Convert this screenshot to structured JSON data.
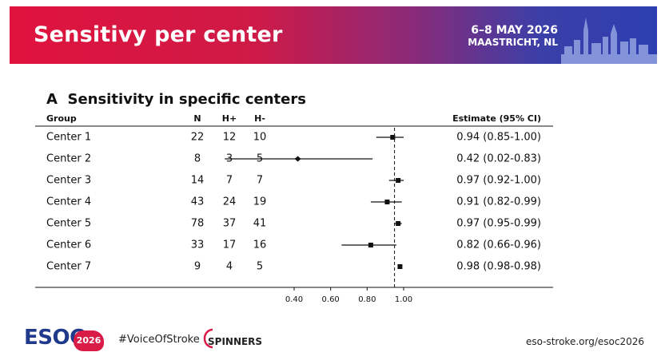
{
  "header": {
    "title": "Sensitivy per center",
    "event_date": "6–8 MAY 2026",
    "event_place": "MAASTRICHT, NL"
  },
  "panel": {
    "letter": "A",
    "title": "Sensitivity in specific centers"
  },
  "table": {
    "headers": {
      "group": "Group",
      "n": "N",
      "hpos": "H+",
      "hneg": "H-",
      "estimate": "Estimate (95% CI)"
    },
    "rows": [
      {
        "group": "Center 1",
        "n": "22",
        "hpos": "12",
        "hneg": "10",
        "estimate": "0.94 (0.85-1.00)"
      },
      {
        "group": "Center 2",
        "n": "8",
        "hpos": "3",
        "hneg": "5",
        "estimate": "0.42 (0.02-0.83)"
      },
      {
        "group": "Center 3",
        "n": "14",
        "hpos": "7",
        "hneg": "7",
        "estimate": "0.97 (0.92-1.00)"
      },
      {
        "group": "Center 4",
        "n": "43",
        "hpos": "24",
        "hneg": "19",
        "estimate": "0.91 (0.82-0.99)"
      },
      {
        "group": "Center 5",
        "n": "78",
        "hpos": "37",
        "hneg": "41",
        "estimate": "0.97 (0.95-0.99)"
      },
      {
        "group": "Center 6",
        "n": "33",
        "hpos": "17",
        "hneg": "16",
        "estimate": "0.82 (0.66-0.96)"
      },
      {
        "group": "Center 7",
        "n": "9",
        "hpos": "4",
        "hneg": "5",
        "estimate": "0.98 (0.98-0.98)"
      }
    ]
  },
  "chart_data": {
    "type": "forest",
    "title": "Sensitivity in specific centers",
    "categories": [
      "Center 1",
      "Center 2",
      "Center 3",
      "Center 4",
      "Center 5",
      "Center 6",
      "Center 7"
    ],
    "estimates": [
      0.94,
      0.42,
      0.97,
      0.91,
      0.97,
      0.82,
      0.98
    ],
    "ci_low": [
      0.85,
      0.02,
      0.92,
      0.82,
      0.95,
      0.66,
      0.98
    ],
    "ci_high": [
      1.0,
      0.83,
      1.0,
      0.99,
      0.99,
      0.96,
      0.98
    ],
    "x_ticks": [
      "0.40",
      "0.60",
      "0.80",
      "1.00"
    ],
    "x_tick_values": [
      0.4,
      0.6,
      0.8,
      1.0
    ],
    "xlim": [
      0.3,
      1.05
    ],
    "reference_line": 0.95,
    "grid": false
  },
  "footer": {
    "logo": "ESOC",
    "badge": "2026",
    "hashtag": "#VoiceOfStroke",
    "partner": "SPINNERS",
    "url": "eso-stroke.org/esoc2026"
  },
  "colors": {
    "header_left": "#e0123e",
    "header_right": "#2d3fb0",
    "logo_blue": "#1f3a8a",
    "badge_red": "#d81b47"
  }
}
